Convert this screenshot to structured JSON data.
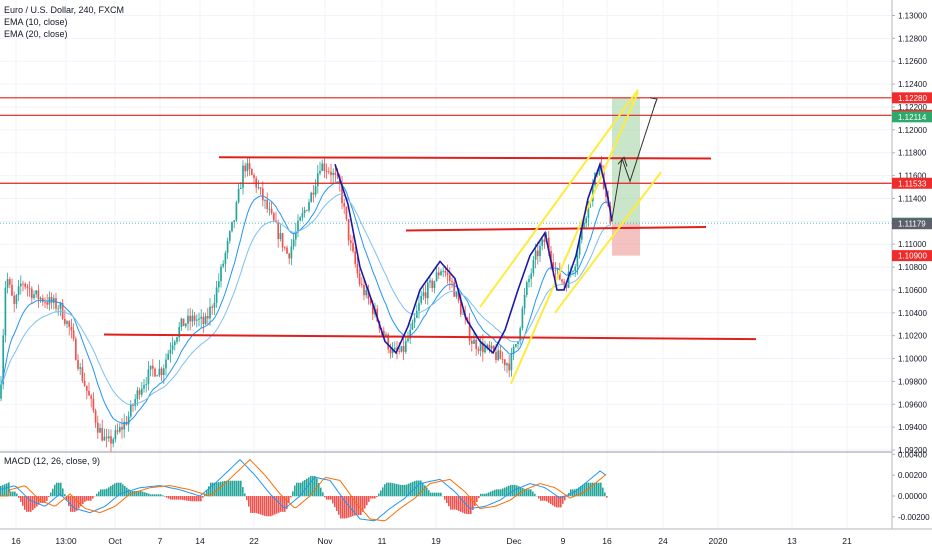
{
  "header": {
    "title": "Euro / U.S. Dollar, 240, FXCM",
    "ema10": "EMA (10, close)",
    "ema20": "EMA (20, close)",
    "macd": "MACD (12, 26, close, 9)"
  },
  "price_axis": {
    "ticks": [
      "1.13000",
      "1.12800",
      "1.12600",
      "1.12400",
      "1.12200",
      "1.12000",
      "1.11800",
      "1.11600",
      "1.11400",
      "1.11200",
      "1.11000",
      "1.10800",
      "1.10600",
      "1.10400",
      "1.10200",
      "1.10000",
      "1.09800",
      "1.09600",
      "1.09400",
      "1.09200"
    ],
    "badges": [
      {
        "label": "1.12280",
        "price": 1.1228,
        "bg": "#ef2b2b"
      },
      {
        "label": "1.12127",
        "price": 1.12127,
        "bg": "#ef2b2b"
      },
      {
        "label": "1.12114",
        "price": 1.12114,
        "bg": "#2ea86b"
      },
      {
        "label": "1.11533",
        "price": 1.11533,
        "bg": "#ef2b2b"
      },
      {
        "label": "1.11184",
        "price": 1.11184,
        "bg": "#2ea86b"
      },
      {
        "label": "1.11179",
        "price": 1.11179,
        "bg": "#5d606b"
      },
      {
        "label": "1.10900",
        "price": 1.109,
        "bg": "#ef2b2b"
      }
    ]
  },
  "macd_axis": {
    "ticks": [
      "0.00400",
      "0.00200",
      "0.00000",
      "-0.00200"
    ]
  },
  "time_axis": {
    "labels": [
      "16",
      "13:00",
      "Oct",
      "7",
      "14",
      "22",
      "Nov",
      "11",
      "19",
      "Dec",
      "9",
      "16",
      "24",
      "2020",
      "13",
      "21"
    ]
  },
  "colors": {
    "up": "#26a69a",
    "down": "#ef5350",
    "ema_fast": "#2196f3",
    "ema_slow": "#7ec0ee",
    "pattern_line": "#1a1aa6",
    "level_line": "#e0201c",
    "channel": "#ffeb3b",
    "macd_line": "#2196f3",
    "signal_line": "#ff6d00",
    "macd_hist": "#26a69a",
    "macd_hist_neg": "#ef5350"
  }
}
